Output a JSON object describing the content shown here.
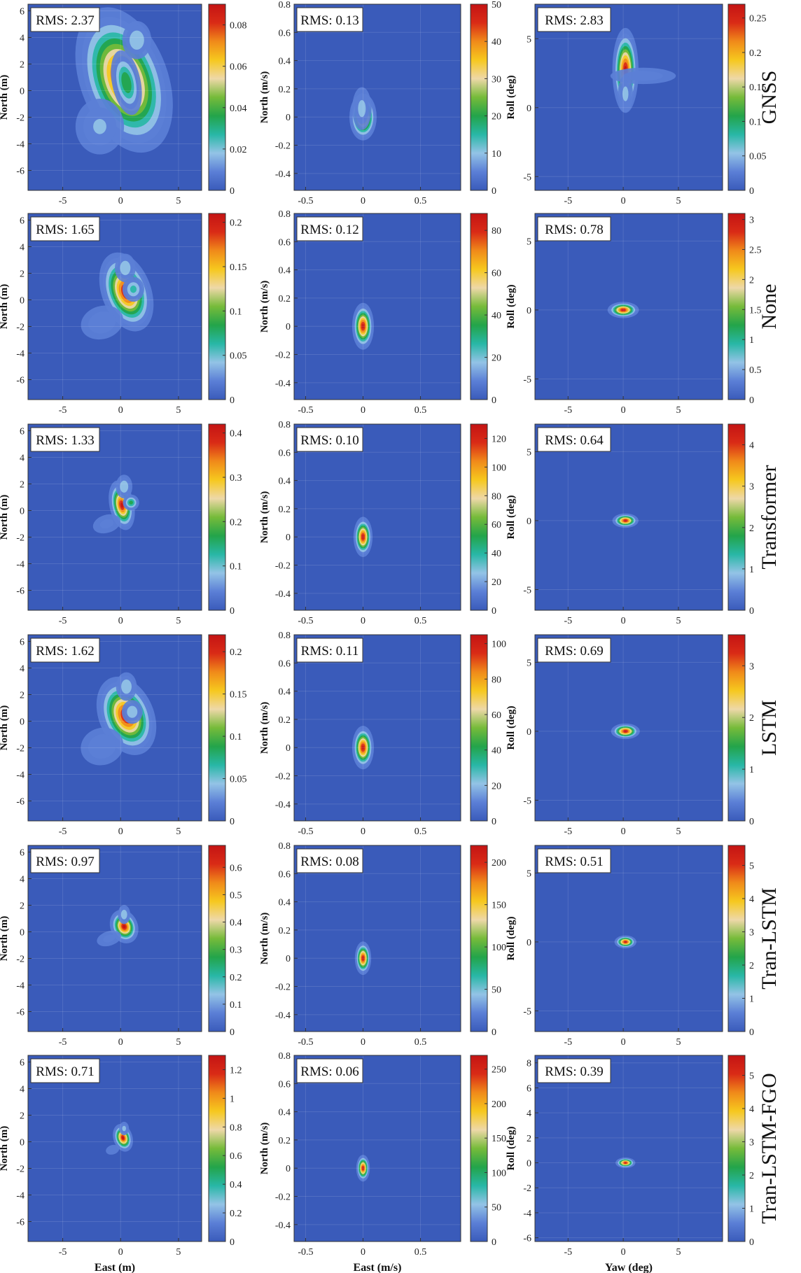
{
  "colors": {
    "background": "#3A5BBA",
    "colormap": [
      "#3A5BBA",
      "#5B7FD6",
      "#93C3E6",
      "#28B7A6",
      "#23A44A",
      "#76BB3A",
      "#EED8A8",
      "#F6C81E",
      "#F08A1A",
      "#D92B16",
      "#C41414"
    ]
  },
  "chart_data": [
    {
      "type": "heatmap",
      "row_label": "GNSS",
      "panel": "position",
      "rms": "RMS: 2.37",
      "ylabel": "North (m)",
      "xlabel": "",
      "xlim": [
        -8,
        7
      ],
      "ylim": [
        -7.5,
        6.5
      ],
      "xticks": [
        "-5",
        "0",
        "5"
      ],
      "yticks": [
        "6",
        "4",
        "2",
        "0",
        "-2",
        "-4",
        "-6"
      ],
      "clim": [
        0,
        0.09
      ],
      "cticks": [
        "0",
        "0.02",
        "0.04",
        "0.06",
        "0.08"
      ],
      "blobs": [
        {
          "x": 0.3,
          "y": 0.8,
          "sx": 1.6,
          "sy": 2.4,
          "a": 1.0,
          "rot": -0.35
        },
        {
          "x": 0.5,
          "y": 0.6,
          "sx": 0.6,
          "sy": 1.2,
          "a": 0.5,
          "rot": -0.2
        },
        {
          "x": -1.8,
          "y": -2.7,
          "sx": 1.3,
          "sy": 1.3,
          "a": 0.22,
          "rot": 0
        },
        {
          "x": 1.4,
          "y": 3.8,
          "sx": 0.7,
          "sy": 0.8,
          "a": 0.3,
          "rot": 0
        }
      ]
    },
    {
      "type": "heatmap",
      "row_label": "GNSS",
      "panel": "velocity",
      "rms": "RMS: 0.13",
      "ylabel": "North (m/s)",
      "xlabel": "",
      "xlim": [
        -0.6,
        0.85
      ],
      "ylim": [
        -0.52,
        0.8
      ],
      "xticks": [
        "-0.5",
        "0",
        "0.5"
      ],
      "yticks": [
        "0.8",
        "0.6",
        "0.4",
        "0.2",
        "0",
        "-0.2",
        "-0.4"
      ],
      "clim": [
        0,
        50
      ],
      "cticks": [
        "0",
        "10",
        "20",
        "30",
        "40",
        "50"
      ],
      "blobs": [
        {
          "x": 0,
          "y": 0,
          "sx": 0.05,
          "sy": 0.07,
          "a": 1.0,
          "rot": 0
        },
        {
          "x": -0.01,
          "y": 0.06,
          "sx": 0.05,
          "sy": 0.09,
          "a": 0.25,
          "rot": 0
        }
      ]
    },
    {
      "type": "heatmap",
      "row_label": "GNSS",
      "panel": "attitude",
      "rms": "RMS: 2.83",
      "ylabel": "Roll (deg)",
      "xlabel": "",
      "xlim": [
        -8,
        9
      ],
      "ylim": [
        -6,
        7.5
      ],
      "xticks": [
        "-5",
        "0",
        "5"
      ],
      "yticks": [
        "5",
        "0",
        "-5"
      ],
      "clim": [
        0,
        0.27
      ],
      "cticks": [
        "0",
        "0.05",
        "0.1",
        "0.15",
        "0.2",
        "0.25"
      ],
      "blobs": [
        {
          "x": 0.2,
          "y": 2.7,
          "sx": 0.5,
          "sy": 1.3,
          "a": 1.0,
          "rot": 0
        },
        {
          "x": 1.8,
          "y": 2.3,
          "sx": 2.0,
          "sy": 0.4,
          "a": 0.18,
          "rot": 0
        },
        {
          "x": 0.2,
          "y": 1.0,
          "sx": 0.4,
          "sy": 0.8,
          "a": 0.25,
          "rot": 0
        }
      ]
    },
    {
      "type": "heatmap",
      "row_label": "None",
      "panel": "position",
      "rms": "RMS: 1.65",
      "ylabel": "North (m)",
      "xlabel": "",
      "xlim": [
        -8,
        7
      ],
      "ylim": [
        -7.5,
        6.5
      ],
      "xticks": [
        "-5",
        "0",
        "5"
      ],
      "yticks": [
        "6",
        "4",
        "2",
        "0",
        "-2",
        "-4",
        "-6"
      ],
      "clim": [
        0,
        0.21
      ],
      "cticks": [
        "0",
        "0.05",
        "0.1",
        "0.15",
        "0.2"
      ],
      "blobs": [
        {
          "x": 0.5,
          "y": 0.6,
          "sx": 0.9,
          "sy": 1.3,
          "a": 1.0,
          "rot": -0.35
        },
        {
          "x": 1.1,
          "y": 0.8,
          "sx": 0.5,
          "sy": 0.5,
          "a": 0.35,
          "rot": 0
        },
        {
          "x": -1.6,
          "y": -1.7,
          "sx": 1.2,
          "sy": 0.8,
          "a": 0.2,
          "rot": -0.3
        },
        {
          "x": 0.4,
          "y": 2.4,
          "sx": 0.5,
          "sy": 0.6,
          "a": 0.3,
          "rot": 0
        }
      ]
    },
    {
      "type": "heatmap",
      "row_label": "None",
      "panel": "velocity",
      "rms": "RMS: 0.12",
      "ylabel": "North (m/s)",
      "xlabel": "",
      "xlim": [
        -0.6,
        0.85
      ],
      "ylim": [
        -0.52,
        0.8
      ],
      "xticks": [
        "-0.5",
        "0",
        "0.5"
      ],
      "yticks": [
        "0.8",
        "0.6",
        "0.4",
        "0.2",
        "0",
        "-0.2",
        "-0.4"
      ],
      "clim": [
        0,
        88
      ],
      "cticks": [
        "0",
        "20",
        "40",
        "60",
        "80"
      ],
      "blobs": [
        {
          "x": 0,
          "y": 0,
          "sx": 0.04,
          "sy": 0.07,
          "a": 1.0,
          "rot": 0
        }
      ]
    },
    {
      "type": "heatmap",
      "row_label": "None",
      "panel": "attitude",
      "rms": "RMS: 0.78",
      "ylabel": "Roll (deg)",
      "xlabel": "",
      "xlim": [
        -8,
        9
      ],
      "ylim": [
        -6.5,
        7
      ],
      "xticks": [
        "-5",
        "0",
        "5"
      ],
      "yticks": [
        "5",
        "0",
        "-5"
      ],
      "clim": [
        0,
        3.1
      ],
      "cticks": [
        "0",
        "0.5",
        "1",
        "1.5",
        "2",
        "2.5",
        "3"
      ],
      "blobs": [
        {
          "x": 0,
          "y": 0,
          "sx": 0.6,
          "sy": 0.25,
          "a": 1.0,
          "rot": 0
        }
      ]
    },
    {
      "type": "heatmap",
      "row_label": "Transformer",
      "panel": "position",
      "rms": "RMS: 1.33",
      "ylabel": "North (m)",
      "xlabel": "",
      "xlim": [
        -8,
        7
      ],
      "ylim": [
        -7.5,
        6.5
      ],
      "xticks": [
        "-5",
        "0",
        "5"
      ],
      "yticks": [
        "6",
        "4",
        "2",
        "0",
        "-2",
        "-4",
        "-6"
      ],
      "clim": [
        0,
        0.42
      ],
      "cticks": [
        "0",
        "0.1",
        "0.2",
        "0.3",
        "0.4"
      ],
      "blobs": [
        {
          "x": 0.1,
          "y": 0.4,
          "sx": 0.45,
          "sy": 0.8,
          "a": 1.0,
          "rot": -0.2
        },
        {
          "x": 0.9,
          "y": 0.6,
          "sx": 0.35,
          "sy": 0.3,
          "a": 0.45,
          "rot": 0
        },
        {
          "x": -1.2,
          "y": -1.0,
          "sx": 0.9,
          "sy": 0.5,
          "a": 0.15,
          "rot": -0.3
        },
        {
          "x": 0.3,
          "y": 1.8,
          "sx": 0.4,
          "sy": 0.5,
          "a": 0.3,
          "rot": 0
        }
      ]
    },
    {
      "type": "heatmap",
      "row_label": "Transformer",
      "panel": "velocity",
      "rms": "RMS: 0.10",
      "ylabel": "North (m/s)",
      "xlabel": "",
      "xlim": [
        -0.6,
        0.85
      ],
      "ylim": [
        -0.52,
        0.8
      ],
      "xticks": [
        "-0.5",
        "0",
        "0.5"
      ],
      "yticks": [
        "0.8",
        "0.6",
        "0.4",
        "0.2",
        "0",
        "-0.2",
        "-0.4"
      ],
      "clim": [
        0,
        130
      ],
      "cticks": [
        "0",
        "20",
        "40",
        "60",
        "80",
        "100",
        "120"
      ],
      "blobs": [
        {
          "x": 0,
          "y": 0,
          "sx": 0.035,
          "sy": 0.06,
          "a": 1.0,
          "rot": 0
        }
      ]
    },
    {
      "type": "heatmap",
      "row_label": "Transformer",
      "panel": "attitude",
      "rms": "RMS: 0.64",
      "ylabel": "Roll (deg)",
      "xlabel": "",
      "xlim": [
        -8,
        9
      ],
      "ylim": [
        -6.5,
        7
      ],
      "xticks": [
        "-5",
        "0",
        "5"
      ],
      "yticks": [
        "5",
        "0",
        "-5"
      ],
      "clim": [
        0,
        4.5
      ],
      "cticks": [
        "0",
        "1",
        "2",
        "3",
        "4"
      ],
      "blobs": [
        {
          "x": 0.2,
          "y": 0,
          "sx": 0.5,
          "sy": 0.22,
          "a": 1.0,
          "rot": 0
        }
      ]
    },
    {
      "type": "heatmap",
      "row_label": "LSTM",
      "panel": "position",
      "rms": "RMS: 1.62",
      "ylabel": "North (m)",
      "xlabel": "",
      "xlim": [
        -8,
        7
      ],
      "ylim": [
        -7.5,
        6.5
      ],
      "xticks": [
        "-5",
        "0",
        "5"
      ],
      "yticks": [
        "6",
        "4",
        "2",
        "0",
        "-2",
        "-4",
        "-6"
      ],
      "clim": [
        0,
        0.22
      ],
      "cticks": [
        "0",
        "0.05",
        "0.1",
        "0.15",
        "0.2"
      ],
      "blobs": [
        {
          "x": 0.5,
          "y": 0.4,
          "sx": 1.0,
          "sy": 1.3,
          "a": 1.0,
          "rot": -0.4
        },
        {
          "x": 1.0,
          "y": 0.7,
          "sx": 0.5,
          "sy": 0.5,
          "a": 0.3,
          "rot": 0
        },
        {
          "x": -1.6,
          "y": -1.9,
          "sx": 1.2,
          "sy": 0.9,
          "a": 0.2,
          "rot": -0.3
        },
        {
          "x": 0.5,
          "y": 2.6,
          "sx": 0.5,
          "sy": 0.6,
          "a": 0.3,
          "rot": 0
        }
      ]
    },
    {
      "type": "heatmap",
      "row_label": "LSTM",
      "panel": "velocity",
      "rms": "RMS: 0.11",
      "ylabel": "North (m/s)",
      "xlabel": "",
      "xlim": [
        -0.6,
        0.85
      ],
      "ylim": [
        -0.52,
        0.8
      ],
      "xticks": [
        "-0.5",
        "0",
        "0.5"
      ],
      "yticks": [
        "0.8",
        "0.6",
        "0.4",
        "0.2",
        "0",
        "-0.2",
        "-0.4"
      ],
      "clim": [
        0,
        105
      ],
      "cticks": [
        "0",
        "20",
        "40",
        "60",
        "80",
        "100"
      ],
      "blobs": [
        {
          "x": 0,
          "y": 0,
          "sx": 0.04,
          "sy": 0.065,
          "a": 1.0,
          "rot": 0
        }
      ]
    },
    {
      "type": "heatmap",
      "row_label": "LSTM",
      "panel": "attitude",
      "rms": "RMS: 0.69",
      "ylabel": "Roll (deg)",
      "xlabel": "",
      "xlim": [
        -8,
        9
      ],
      "ylim": [
        -6.5,
        7
      ],
      "xticks": [
        "-5",
        "0",
        "5"
      ],
      "yticks": [
        "5",
        "0",
        "-5"
      ],
      "clim": [
        0,
        3.6
      ],
      "cticks": [
        "0",
        "1",
        "2",
        "3"
      ],
      "blobs": [
        {
          "x": 0.2,
          "y": 0,
          "sx": 0.55,
          "sy": 0.24,
          "a": 1.0,
          "rot": 0
        }
      ]
    },
    {
      "type": "heatmap",
      "row_label": "Tran-LSTM",
      "panel": "position",
      "rms": "RMS: 0.97",
      "ylabel": "North (m)",
      "xlabel": "",
      "xlim": [
        -8,
        7
      ],
      "ylim": [
        -7.5,
        6.5
      ],
      "xticks": [
        "-5",
        "0",
        "5"
      ],
      "yticks": [
        "6",
        "4",
        "2",
        "0",
        "-2",
        "-4",
        "-6"
      ],
      "clim": [
        0,
        0.68
      ],
      "cticks": [
        "0",
        "0.1",
        "0.2",
        "0.3",
        "0.4",
        "0.5",
        "0.6"
      ],
      "blobs": [
        {
          "x": 0.3,
          "y": 0.4,
          "sx": 0.5,
          "sy": 0.55,
          "a": 1.0,
          "rot": -0.4
        },
        {
          "x": -1.0,
          "y": -0.5,
          "sx": 0.8,
          "sy": 0.4,
          "a": 0.15,
          "rot": -0.3
        },
        {
          "x": 0.3,
          "y": 1.3,
          "sx": 0.3,
          "sy": 0.4,
          "a": 0.3,
          "rot": 0
        }
      ]
    },
    {
      "type": "heatmap",
      "row_label": "Tran-LSTM",
      "panel": "velocity",
      "rms": "RMS: 0.08",
      "ylabel": "North (m/s)",
      "xlabel": "",
      "xlim": [
        -0.6,
        0.85
      ],
      "ylim": [
        -0.52,
        0.8
      ],
      "xticks": [
        "-0.5",
        "0",
        "0.5"
      ],
      "yticks": [
        "0.8",
        "0.6",
        "0.4",
        "0.2",
        "0",
        "-0.2",
        "-0.4"
      ],
      "clim": [
        0,
        220
      ],
      "cticks": [
        "0",
        "50",
        "100",
        "150",
        "200"
      ],
      "blobs": [
        {
          "x": 0,
          "y": 0,
          "sx": 0.03,
          "sy": 0.05,
          "a": 1.0,
          "rot": 0
        }
      ]
    },
    {
      "type": "heatmap",
      "row_label": "Tran-LSTM",
      "panel": "attitude",
      "rms": "RMS: 0.51",
      "ylabel": "Roll (deg)",
      "xlabel": "",
      "xlim": [
        -8,
        9
      ],
      "ylim": [
        -6.5,
        7
      ],
      "xticks": [
        "-5",
        "0",
        "5"
      ],
      "yticks": [
        "5",
        "0",
        "-5"
      ],
      "clim": [
        0,
        5.6
      ],
      "cticks": [
        "0",
        "1",
        "2",
        "3",
        "4",
        "5"
      ],
      "blobs": [
        {
          "x": 0.2,
          "y": 0,
          "sx": 0.42,
          "sy": 0.2,
          "a": 1.0,
          "rot": 0
        }
      ]
    },
    {
      "type": "heatmap",
      "row_label": "Tran-LSTM-FGO",
      "panel": "position",
      "rms": "RMS: 0.71",
      "ylabel": "North (m)",
      "xlabel": "East (m)",
      "xlim": [
        -8,
        7
      ],
      "ylim": [
        -7.5,
        6.5
      ],
      "xticks": [
        "-5",
        "0",
        "5"
      ],
      "yticks": [
        "6",
        "4",
        "2",
        "0",
        "-2",
        "-4",
        "-6"
      ],
      "clim": [
        0,
        1.3
      ],
      "cticks": [
        "0",
        "0.2",
        "0.4",
        "0.6",
        "0.8",
        "1",
        "1.2"
      ],
      "blobs": [
        {
          "x": 0.2,
          "y": 0.3,
          "sx": 0.35,
          "sy": 0.45,
          "a": 1.0,
          "rot": -0.3
        },
        {
          "x": -0.7,
          "y": -0.6,
          "sx": 0.5,
          "sy": 0.3,
          "a": 0.12,
          "rot": -0.3
        },
        {
          "x": 0.3,
          "y": 1.0,
          "sx": 0.25,
          "sy": 0.3,
          "a": 0.25,
          "rot": 0
        }
      ]
    },
    {
      "type": "heatmap",
      "row_label": "Tran-LSTM-FGO",
      "panel": "velocity",
      "rms": "RMS: 0.06",
      "ylabel": "North (m/s)",
      "xlabel": "East (m/s)",
      "xlim": [
        -0.6,
        0.85
      ],
      "ylim": [
        -0.52,
        0.8
      ],
      "xticks": [
        "-0.5",
        "0",
        "0.5"
      ],
      "yticks": [
        "0.8",
        "0.6",
        "0.4",
        "0.2",
        "0",
        "-0.2",
        "-0.4"
      ],
      "clim": [
        0,
        270
      ],
      "cticks": [
        "0",
        "50",
        "100",
        "150",
        "200",
        "250"
      ],
      "blobs": [
        {
          "x": 0,
          "y": 0,
          "sx": 0.025,
          "sy": 0.04,
          "a": 1.0,
          "rot": 0
        }
      ]
    },
    {
      "type": "heatmap",
      "row_label": "Tran-LSTM-FGO",
      "panel": "attitude",
      "rms": "RMS: 0.39",
      "ylabel": "Roll (deg)",
      "xlabel": "Yaw (deg)",
      "xlim": [
        -8,
        9
      ],
      "ylim": [
        -6.3,
        8.6
      ],
      "xticks": [
        "-5",
        "0",
        "5"
      ],
      "yticks": [
        "8",
        "6",
        "4",
        "2",
        "0",
        "-2",
        "-4",
        "-6"
      ],
      "clim": [
        0,
        5.6
      ],
      "cticks": [
        "0",
        "1",
        "2",
        "3",
        "4",
        "5"
      ],
      "blobs": [
        {
          "x": 0.2,
          "y": 0,
          "sx": 0.38,
          "sy": 0.18,
          "a": 1.0,
          "rot": 0
        }
      ]
    }
  ]
}
